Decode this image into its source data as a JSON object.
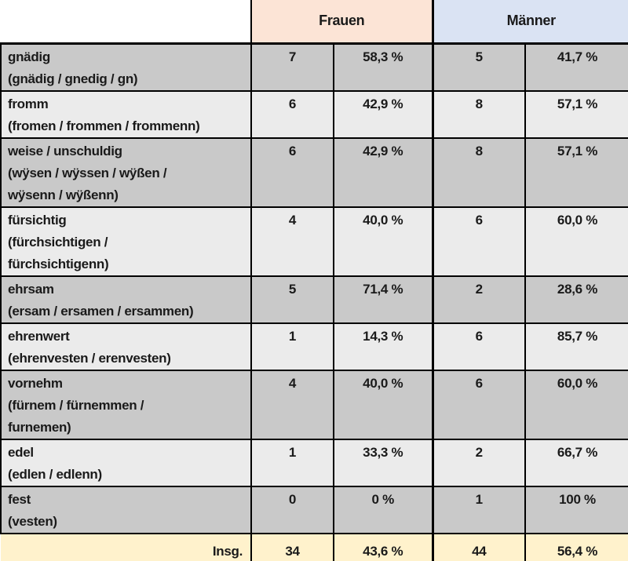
{
  "colors": {
    "frauen_header_bg": "#fce4d6",
    "maenner_header_bg": "#dae3f3",
    "row_dark_bg": "#c9c9c9",
    "row_light_bg": "#ebebeb",
    "total_bg": "#fff2cc",
    "border_color": "#000000",
    "text_color": "#1a1a1a"
  },
  "table": {
    "header": {
      "frauen": "Frauen",
      "maenner": "Männer"
    },
    "rows": [
      {
        "label": "gnädig\n(gnädig / gnedig / gn)",
        "f_count": "7",
        "f_pct": "58,3 %",
        "m_count": "5",
        "m_pct": "41,7 %"
      },
      {
        "label": "fromm\n(fromen / frommen / frommenn)",
        "f_count": "6",
        "f_pct": "42,9 %",
        "m_count": "8",
        "m_pct": "57,1 %"
      },
      {
        "label": "weise / unschuldig\n(wÿsen / wÿssen / wÿßen /\nwÿsenn / wÿßenn)",
        "f_count": "6",
        "f_pct": "42,9 %",
        "m_count": "8",
        "m_pct": "57,1 %"
      },
      {
        "label": "fürsichtig\n(fürchsichtigen /\nfürchsichtigenn)",
        "f_count": "4",
        "f_pct": "40,0 %",
        "m_count": "6",
        "m_pct": "60,0 %"
      },
      {
        "label": "ehrsam\n(ersam / ersamen / ersammen)",
        "f_count": "5",
        "f_pct": "71,4 %",
        "m_count": "2",
        "m_pct": "28,6 %"
      },
      {
        "label": "ehrenwert\n(ehrenvesten / erenvesten)",
        "f_count": "1",
        "f_pct": "14,3 %",
        "m_count": "6",
        "m_pct": "85,7 %"
      },
      {
        "label": "vornehm\n(fürnem / fürnemmen /\nfurnemen)",
        "f_count": "4",
        "f_pct": "40,0 %",
        "m_count": "6",
        "m_pct": "60,0 %"
      },
      {
        "label": "edel\n(edlen / edlenn)",
        "f_count": "1",
        "f_pct": "33,3 %",
        "m_count": "2",
        "m_pct": "66,7 %"
      },
      {
        "label": "fest\n(vesten)",
        "f_count": "0",
        "f_pct": "0 %",
        "m_count": "1",
        "m_pct": "100 %"
      }
    ],
    "total": {
      "label": "Insg.",
      "f_count": "34",
      "f_pct": "43,6 %",
      "m_count": "44",
      "m_pct": "56,4 %"
    }
  }
}
